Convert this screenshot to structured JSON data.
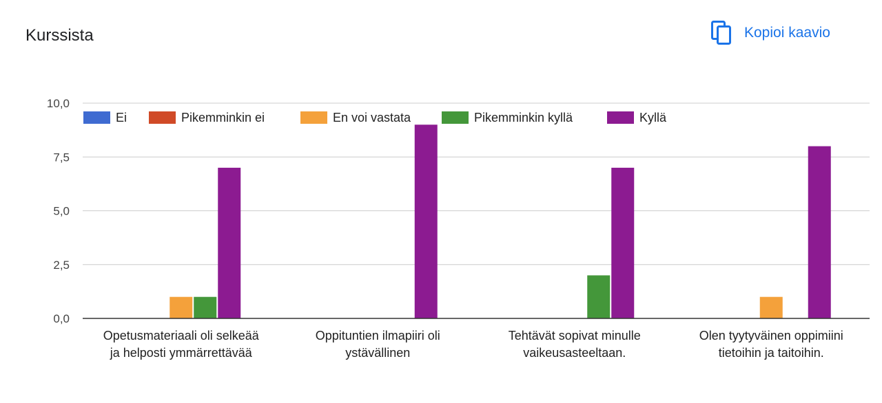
{
  "header": {
    "title": "Kurssista",
    "copy_label": "Kopioi kaavio",
    "copy_icon": "copy-icon"
  },
  "colors": {
    "accent": "#1a73e8",
    "series": [
      "#3f6bd1",
      "#d04a27",
      "#f4a13b",
      "#44973a",
      "#8c1b91"
    ],
    "grid": "#cccccc",
    "axis": "#333333"
  },
  "chart_data": {
    "type": "bar",
    "categories": [
      [
        "Opetusmateriaali oli selkeää",
        "ja helposti ymmärrettävää"
      ],
      [
        "Oppituntien ilmapiiri oli",
        "ystävällinen"
      ],
      [
        "Tehtävät sopivat minulle",
        "vaikeusasteeltaan."
      ],
      [
        "Olen tyytyväinen oppimiini",
        "tietoihin ja taitoihin."
      ]
    ],
    "series": [
      {
        "name": "Ei",
        "values": [
          0,
          0,
          0,
          0
        ]
      },
      {
        "name": "Pikemminkin ei",
        "values": [
          0,
          0,
          0,
          0
        ]
      },
      {
        "name": "En voi vastata",
        "values": [
          1,
          0,
          0,
          1
        ]
      },
      {
        "name": "Pikemminkin kyllä",
        "values": [
          1,
          0,
          2,
          0
        ]
      },
      {
        "name": "Kyllä",
        "values": [
          7,
          9,
          7,
          8
        ]
      }
    ],
    "ylim": [
      0,
      10
    ],
    "yticks": [
      "0,0",
      "2,5",
      "5,0",
      "7,5",
      "10,0"
    ],
    "ytick_values": [
      0,
      2.5,
      5,
      7.5,
      10
    ],
    "grid": true,
    "legend": "top-left"
  }
}
